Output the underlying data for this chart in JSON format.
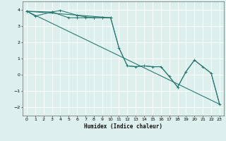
{
  "xlabel": "Humidex (Indice chaleur)",
  "background_color": "#ddf0ee",
  "grid_color": "#ffffff",
  "line_color": "#2a7a72",
  "xlim": [
    -0.5,
    23.5
  ],
  "ylim": [
    -2.5,
    4.5
  ],
  "xticks": [
    0,
    1,
    2,
    3,
    4,
    5,
    6,
    7,
    8,
    9,
    10,
    11,
    12,
    13,
    14,
    15,
    16,
    17,
    18,
    19,
    20,
    21,
    22,
    23
  ],
  "yticks": [
    -2,
    -1,
    0,
    1,
    2,
    3,
    4
  ],
  "lines": [
    {
      "x": [
        0,
        3,
        4,
        6,
        7,
        8,
        9,
        10
      ],
      "y": [
        3.9,
        3.85,
        3.95,
        3.65,
        3.55,
        3.5,
        3.5,
        3.5
      ],
      "markers": true
    },
    {
      "x": [
        0,
        1,
        3,
        5,
        6,
        7,
        8,
        9,
        10,
        11,
        12,
        13,
        14,
        15,
        16,
        17,
        18,
        19,
        20,
        21,
        22,
        23
      ],
      "y": [
        3.9,
        3.6,
        3.85,
        3.5,
        3.5,
        3.5,
        3.5,
        3.5,
        3.5,
        1.65,
        0.55,
        0.5,
        0.55,
        0.5,
        0.5,
        -0.1,
        -0.75,
        0.2,
        0.9,
        0.5,
        0.1,
        -1.8
      ],
      "markers": true
    },
    {
      "x": [
        0,
        23
      ],
      "y": [
        3.9,
        -1.8
      ],
      "markers": false
    },
    {
      "x": [
        0,
        10,
        11,
        12,
        13,
        14,
        15,
        16,
        17,
        18,
        19,
        20,
        21,
        22,
        23
      ],
      "y": [
        3.9,
        3.5,
        1.65,
        0.55,
        0.5,
        0.55,
        0.5,
        0.5,
        -0.1,
        -0.75,
        0.2,
        0.9,
        0.5,
        0.1,
        -1.8
      ],
      "markers": false
    }
  ]
}
